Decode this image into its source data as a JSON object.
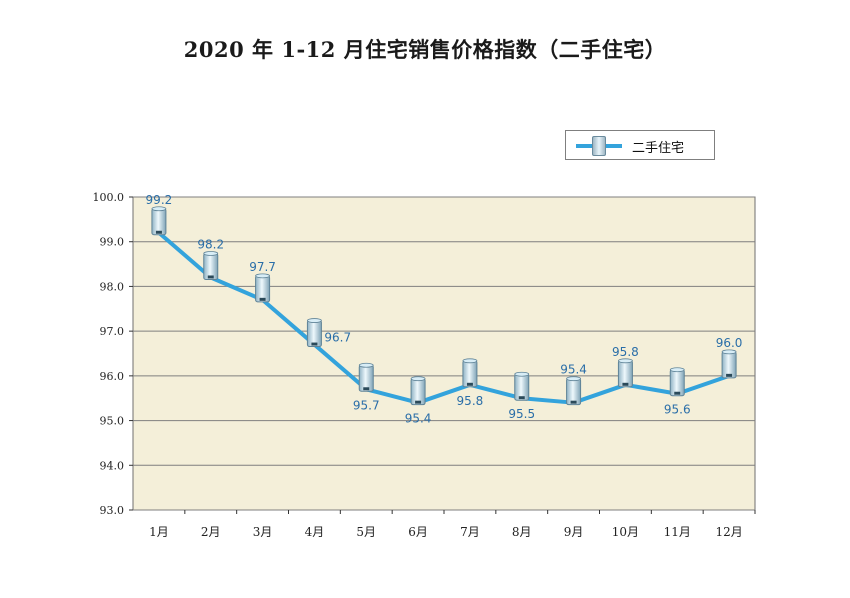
{
  "title": "2020 年 1-12 月住宅销售价格指数（二手住宅）",
  "legend": {
    "label": "二手住宅"
  },
  "colors": {
    "plot_bg": "#f4efd9",
    "line": "#33a3dc",
    "grid": "#7f7f7f",
    "label": "#2a6ea8"
  },
  "chart_data": {
    "type": "line",
    "categories": [
      "1月",
      "2月",
      "3月",
      "4月",
      "5月",
      "6月",
      "7月",
      "8月",
      "9月",
      "10月",
      "11月",
      "12月"
    ],
    "series": [
      {
        "name": "二手住宅",
        "values": [
          99.2,
          98.2,
          97.7,
          96.7,
          95.7,
          95.4,
          95.8,
          95.5,
          95.4,
          95.8,
          95.6,
          96.0
        ]
      }
    ],
    "yticks": [
      "100.0",
      "99.0",
      "98.0",
      "97.0",
      "96.0",
      "95.0",
      "94.0",
      "93.0"
    ],
    "ylim": [
      93.0,
      100.0
    ],
    "grid": true,
    "legend_position": "top-right",
    "data_labels": [
      "99.2",
      "98.2",
      "97.7",
      "96.7",
      "95.7",
      "95.4",
      "95.8",
      "95.5",
      "95.4",
      "95.8",
      "95.6",
      "96.0"
    ]
  }
}
